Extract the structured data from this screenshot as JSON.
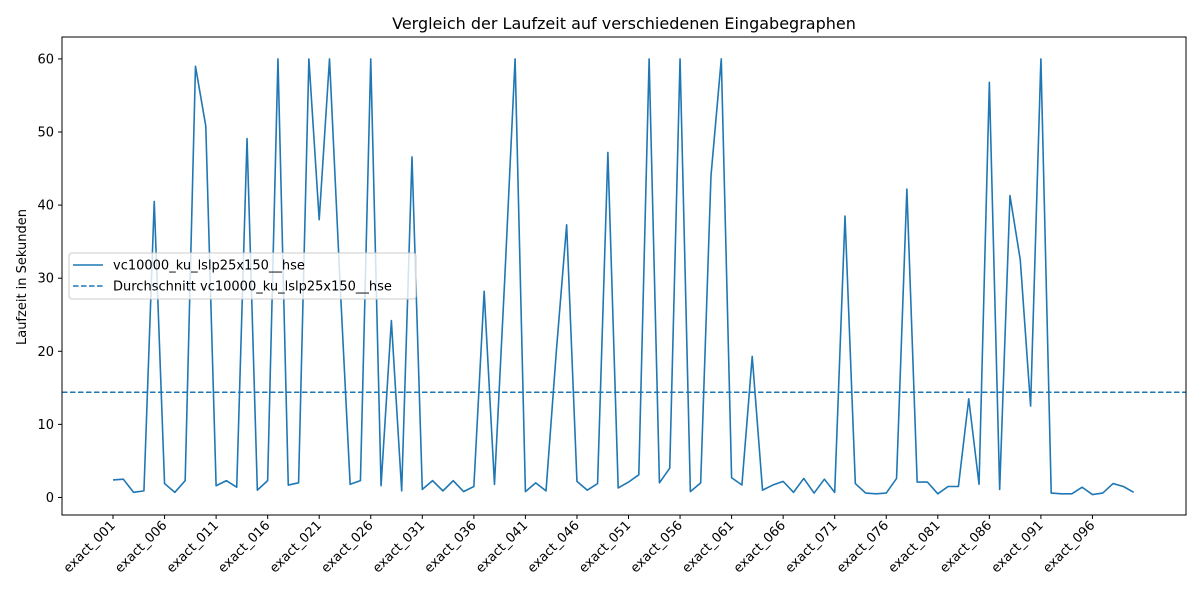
{
  "chart_data": {
    "type": "line",
    "title": "Vergleich der Laufzeit auf verschiedenen Eingabegraphen",
    "xlabel": "",
    "ylabel": "Laufzeit in Sekunden",
    "ylim": [
      -2.4,
      63
    ],
    "yticks": [
      0,
      10,
      20,
      30,
      40,
      50,
      60
    ],
    "x_tick_labels": [
      "exact_001",
      "exact_006",
      "exact_011",
      "exact_016",
      "exact_021",
      "exact_026",
      "exact_031",
      "exact_036",
      "exact_041",
      "exact_046",
      "exact_051",
      "exact_056",
      "exact_061",
      "exact_066",
      "exact_071",
      "exact_076",
      "exact_081",
      "exact_086",
      "exact_091",
      "exact_096"
    ],
    "tick_every": 5,
    "grid": false,
    "legend_position": "center-left",
    "colors": {
      "series": "#1f77b4"
    },
    "series": [
      {
        "name": "vc10000_ku_lslp25x150__hse",
        "style": "solid",
        "values": [
          2.4,
          2.5,
          0.7,
          0.9,
          40.5,
          1.9,
          0.7,
          2.3,
          59.0,
          50.8,
          1.6,
          2.3,
          1.4,
          49.1,
          1.0,
          2.3,
          60.0,
          1.7,
          2.0,
          60.0,
          38.0,
          60.0,
          30.0,
          1.8,
          2.3,
          60.0,
          1.6,
          24.2,
          0.9,
          46.6,
          1.1,
          2.3,
          0.9,
          2.3,
          0.8,
          1.5,
          28.2,
          1.8,
          30.0,
          60.0,
          0.8,
          2.0,
          0.9,
          20.0,
          37.3,
          2.2,
          1.0,
          1.9,
          47.2,
          1.3,
          2.1,
          3.1,
          60.0,
          2.0,
          4.0,
          60.0,
          0.8,
          2.0,
          44.0,
          60.0,
          2.7,
          1.7,
          19.3,
          1.0,
          1.7,
          2.2,
          0.7,
          2.6,
          0.6,
          2.5,
          0.7,
          38.5,
          1.9,
          0.6,
          0.5,
          0.6,
          2.6,
          42.2,
          2.1,
          2.1,
          0.5,
          1.5,
          1.5,
          13.5,
          1.8,
          56.8,
          1.1,
          41.3,
          32.5,
          12.5,
          60.0,
          0.6,
          0.5,
          0.5,
          1.4,
          0.4,
          0.6,
          1.9,
          1.5,
          0.7
        ]
      },
      {
        "name": "Durchschnitt vc10000_ku_lslp25x150__hse",
        "style": "dashed",
        "mean": 14.4
      }
    ]
  }
}
